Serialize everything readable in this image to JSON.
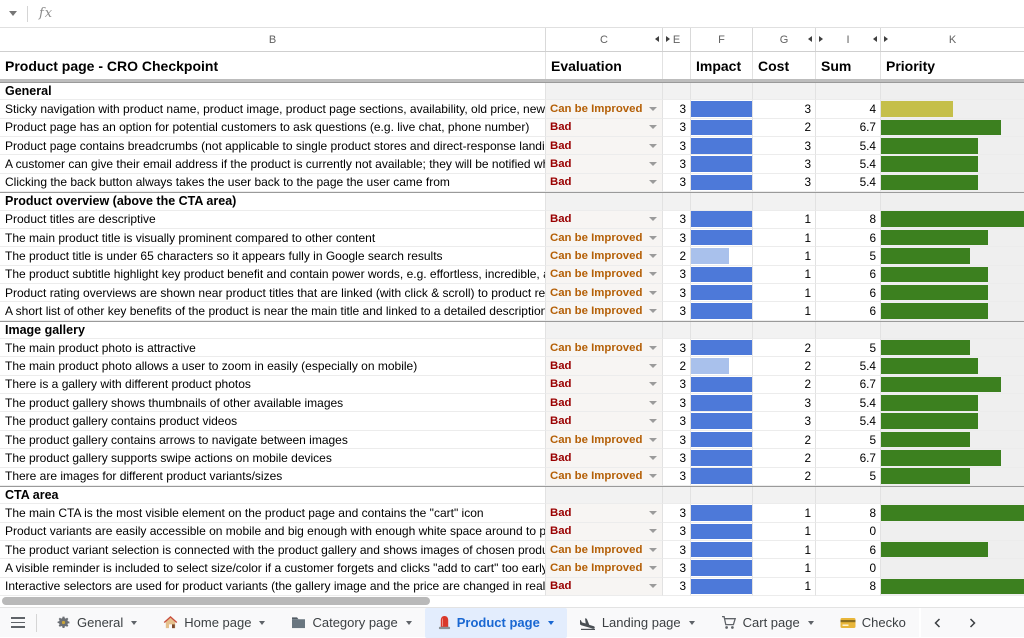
{
  "formula_bar": {
    "fx_label": "fx"
  },
  "columns": [
    {
      "letter": "B"
    },
    {
      "letter": "C"
    },
    {
      "letter": "E"
    },
    {
      "letter": "F"
    },
    {
      "letter": "G"
    },
    {
      "letter": "I"
    },
    {
      "letter": "K"
    }
  ],
  "header": {
    "title": "Product page - CRO Checkpoint",
    "evaluation": "Evaluation",
    "impact": "Impact",
    "cost": "Cost",
    "sum": "Sum",
    "priority": "Priority"
  },
  "colors": {
    "bad_text": "#990000",
    "improve_text": "#b45f06",
    "impact_bar_full": "#4d79d9",
    "impact_bar_light": "#a9c1ec",
    "priority_green": "#3c801f",
    "priority_yellow": "#c5bf4a",
    "active_tab_bg": "#e3edfd",
    "active_tab_text": "#1967d2"
  },
  "scales": {
    "impact_max": 3,
    "priority_max": 8
  },
  "sections": [
    {
      "title": "General",
      "rows": [
        {
          "text": "Sticky navigation with product name, product image, product page sections, availability, old price, new price, c",
          "evaluation": "Can be Improved",
          "impact": 3,
          "cost": 3,
          "sum": 4
        },
        {
          "text": "Product page has an option for potential customers to ask questions (e.g. live chat, phone number)",
          "evaluation": "Bad",
          "impact": 3,
          "cost": 2,
          "sum": 6.7
        },
        {
          "text": "Product page contains breadcrumbs (not applicable to single product stores and direct-response landing page",
          "evaluation": "Bad",
          "impact": 3,
          "cost": 3,
          "sum": 5.4
        },
        {
          "text": "A customer can give their email address if the product is currently not available; they will be notified when it be",
          "evaluation": "Bad",
          "impact": 3,
          "cost": 3,
          "sum": 5.4
        },
        {
          "text": "Clicking the back button always takes the user back to the page the user came from",
          "evaluation": "Bad",
          "impact": 3,
          "cost": 3,
          "sum": 5.4
        }
      ]
    },
    {
      "title": "Product overview (above the CTA area)",
      "rows": [
        {
          "text": "Product titles are descriptive",
          "evaluation": "Bad",
          "impact": 3,
          "cost": 1,
          "sum": 8
        },
        {
          "text": "The main product title is visually prominent compared to other content",
          "evaluation": "Can be Improved",
          "impact": 3,
          "cost": 1,
          "sum": 6
        },
        {
          "text": "The product title is under 65 characters so it appears fully in Google search results",
          "evaluation": "Can be Improved",
          "impact": 2,
          "cost": 1,
          "sum": 5
        },
        {
          "text": "The product subtitle highlight key product benefit and contain power words, e.g. effortless, incredible, absolute",
          "evaluation": "Can be Improved",
          "impact": 3,
          "cost": 1,
          "sum": 6
        },
        {
          "text": "Product rating overviews are shown near product titles that are linked (with click & scroll) to product reviews (e",
          "evaluation": "Can be Improved",
          "impact": 3,
          "cost": 1,
          "sum": 6
        },
        {
          "text": "A short list of other key benefits of the product is near the main title and linked to a detailed description (with g",
          "evaluation": "Can be Improved",
          "impact": 3,
          "cost": 1,
          "sum": 6
        }
      ]
    },
    {
      "title": "Image gallery",
      "rows": [
        {
          "text": "The main product photo is attractive",
          "evaluation": "Can be Improved",
          "impact": 3,
          "cost": 2,
          "sum": 5
        },
        {
          "text": "The main product photo allows a user to zoom in easily (especially on mobile)",
          "evaluation": "Bad",
          "impact": 2,
          "cost": 2,
          "sum": 5.4
        },
        {
          "text": "There is a gallery with different product photos",
          "evaluation": "Bad",
          "impact": 3,
          "cost": 2,
          "sum": 6.7
        },
        {
          "text": "The product gallery shows thumbnails of other available images",
          "evaluation": "Bad",
          "impact": 3,
          "cost": 3,
          "sum": 5.4
        },
        {
          "text": "The product gallery contains product videos",
          "evaluation": "Bad",
          "impact": 3,
          "cost": 3,
          "sum": 5.4
        },
        {
          "text": "The product gallery contains arrows to navigate between images",
          "evaluation": "Can be Improved",
          "impact": 3,
          "cost": 2,
          "sum": 5
        },
        {
          "text": "The product gallery supports swipe actions on mobile devices",
          "evaluation": "Bad",
          "impact": 3,
          "cost": 2,
          "sum": 6.7
        },
        {
          "text": "There are images for different product variants/sizes",
          "evaluation": "Can be Improved",
          "impact": 3,
          "cost": 2,
          "sum": 5
        }
      ]
    },
    {
      "title": "CTA area",
      "rows": [
        {
          "text": "The main CTA is the most visible element on the product page and contains the \"cart\" icon",
          "evaluation": "Bad",
          "impact": 3,
          "cost": 1,
          "sum": 8
        },
        {
          "text": "Product variants are easily accessible on mobile and big enough with enough white space around to prevent m",
          "evaluation": "Bad",
          "impact": 3,
          "cost": 1,
          "sum": 0
        },
        {
          "text": "The product variant selection is connected with the product gallery and shows images of chosen product varia",
          "evaluation": "Can be Improved",
          "impact": 3,
          "cost": 1,
          "sum": 6
        },
        {
          "text": "A visible reminder is included to select size/color if a customer forgets and clicks \"add to cart\" too early",
          "evaluation": "Can be Improved",
          "impact": 3,
          "cost": 1,
          "sum": 0
        },
        {
          "text": "Interactive selectors are used for product variants (the gallery image and the price are changed in real-time, w",
          "evaluation": "Bad",
          "impact": 3,
          "cost": 1,
          "sum": 8
        }
      ]
    }
  ],
  "tabs": {
    "items": [
      {
        "label": "General",
        "icon": "gear-icon",
        "active": false
      },
      {
        "label": "Home page",
        "icon": "house-icon",
        "active": false
      },
      {
        "label": "Category page",
        "icon": "folder-icon",
        "active": false
      },
      {
        "label": "Product page",
        "icon": "siren-icon",
        "active": true
      },
      {
        "label": "Landing page",
        "icon": "plane-landing-icon",
        "active": false
      },
      {
        "label": "Cart page",
        "icon": "cart-icon",
        "active": false
      },
      {
        "label": "Checko",
        "icon": "credit-card-icon",
        "active": false
      }
    ]
  }
}
